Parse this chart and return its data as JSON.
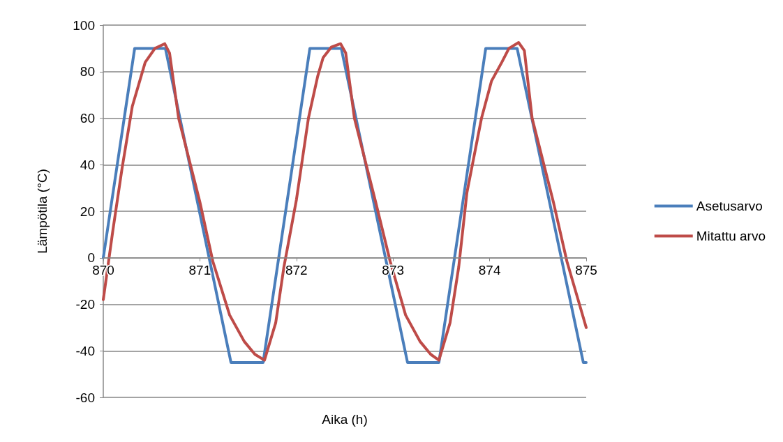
{
  "chart_data": {
    "type": "line",
    "xlabel": "Aika (h)",
    "ylabel": "Lämpötila (°C)",
    "xlim": [
      870,
      875
    ],
    "xticks": [
      870,
      871,
      872,
      873,
      874,
      875
    ],
    "ylim": [
      -60,
      100
    ],
    "yticks": [
      -60,
      -40,
      -20,
      0,
      20,
      40,
      60,
      80,
      100
    ],
    "grid": "y",
    "legend": "right",
    "marker": "none",
    "line_style": "solid",
    "series": [
      {
        "name": "Asetusarvo",
        "color": "#4a7ebb",
        "x": [
          870,
          870.325,
          870.643,
          871.322,
          871.655,
          872.139,
          872.464,
          873.15,
          873.475,
          873.96,
          874.285,
          874.97,
          875
        ],
        "values": [
          0,
          90,
          90,
          -45,
          -45,
          90,
          90,
          -45,
          -45,
          90,
          90,
          -45,
          -45
        ]
      },
      {
        "name": "Mitattu arvo",
        "color": "#be4b48",
        "x": [
          870,
          870.1,
          870.195,
          870.3,
          870.434,
          870.535,
          870.636,
          870.686,
          870.78,
          871.0,
          871.134,
          871.308,
          871.46,
          871.57,
          871.669,
          871.785,
          871.87,
          872.0,
          872.124,
          872.22,
          872.276,
          872.36,
          872.457,
          872.51,
          872.6,
          872.82,
          872.97,
          873.13,
          873.28,
          873.39,
          873.475,
          873.59,
          873.68,
          873.765,
          873.916,
          874.02,
          874.126,
          874.2,
          874.3,
          874.36,
          874.44,
          874.66,
          874.8,
          874.93,
          875
        ],
        "values": [
          -18,
          12,
          38.6,
          65,
          84,
          90,
          92,
          88,
          60,
          24,
          -1.5,
          -24.6,
          -36,
          -41.5,
          -44,
          -28,
          -4,
          25,
          60,
          78,
          86,
          90.5,
          92,
          88,
          60,
          24,
          -1.5,
          -24.6,
          -36,
          -41.5,
          -44,
          -28,
          -4,
          28,
          60,
          76,
          84,
          90,
          92.5,
          89,
          60,
          24,
          -1.5,
          -20,
          -30
        ]
      }
    ]
  }
}
